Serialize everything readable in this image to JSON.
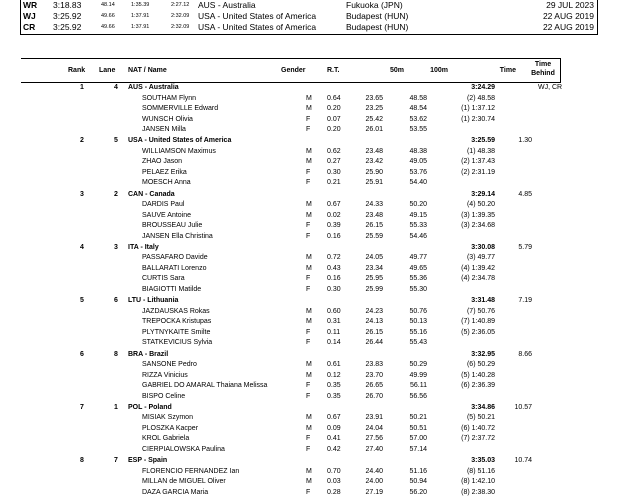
{
  "records": [
    {
      "code": "WR",
      "time": "3:18.83",
      "s1": "48.14",
      "s2": "1:35.39",
      "s3": "2:27.12",
      "holder": "AUS - Australia",
      "venue": "Fukuoka (JPN)",
      "date": "29 JUL 2023"
    },
    {
      "code": "WJ",
      "time": "3:25.92",
      "s1": "49.66",
      "s2": "1:37.91",
      "s3": "2:32.09",
      "holder": "USA - United States of America",
      "venue": "Budapest (HUN)",
      "date": "22 AUG 2019"
    },
    {
      "code": "CR",
      "time": "3:25.92",
      "s1": "49.66",
      "s2": "1:37.91",
      "s3": "2:32.09",
      "holder": "USA - United States of America",
      "venue": "Budapest (HUN)",
      "date": "22 AUG 2019"
    }
  ],
  "header": {
    "rank": "Rank",
    "lane": "Lane",
    "name": "NAT / Name",
    "gender": "Gender",
    "rt": "R.T.",
    "m50": "50m",
    "m100": "100m",
    "time": "Time",
    "behind1": "Time",
    "behind2": "Behind"
  },
  "teams": [
    {
      "rank": "1",
      "lane": "4",
      "name": "AUS - Australia",
      "time": "3:24.29",
      "behind": "",
      "note": "WJ, CR",
      "members": [
        {
          "name": "SOUTHAM Flynn",
          "g": "M",
          "rt": "0.64",
          "m50": "23.65",
          "m100": "48.58",
          "split": "(2) 48.58"
        },
        {
          "name": "SOMMERVILLE Edward",
          "g": "M",
          "rt": "0.20",
          "m50": "23.25",
          "m100": "48.54",
          "split": "(1) 1:37.12"
        },
        {
          "name": "WUNSCH Olivia",
          "g": "F",
          "rt": "0.07",
          "m50": "25.42",
          "m100": "53.62",
          "split": "(1) 2:30.74"
        },
        {
          "name": "JANSEN Milla",
          "g": "F",
          "rt": "0.20",
          "m50": "26.01",
          "m100": "53.55",
          "split": ""
        }
      ]
    },
    {
      "rank": "2",
      "lane": "5",
      "name": "USA - United States of America",
      "time": "3:25.59",
      "behind": "1.30",
      "note": "",
      "members": [
        {
          "name": "WILLIAMSON Maximus",
          "g": "M",
          "rt": "0.62",
          "m50": "23.48",
          "m100": "48.38",
          "split": "(1) 48.38"
        },
        {
          "name": "ZHAO Jason",
          "g": "M",
          "rt": "0.27",
          "m50": "23.42",
          "m100": "49.05",
          "split": "(2) 1:37.43"
        },
        {
          "name": "PELAEZ Erika",
          "g": "F",
          "rt": "0.30",
          "m50": "25.90",
          "m100": "53.76",
          "split": "(2) 2:31.19"
        },
        {
          "name": "MOESCH Anna",
          "g": "F",
          "rt": "0.21",
          "m50": "25.91",
          "m100": "54.40",
          "split": ""
        }
      ]
    },
    {
      "rank": "3",
      "lane": "2",
      "name": "CAN - Canada",
      "time": "3:29.14",
      "behind": "4.85",
      "note": "",
      "members": [
        {
          "name": "DARDIS Paul",
          "g": "M",
          "rt": "0.67",
          "m50": "24.33",
          "m100": "50.20",
          "split": "(4) 50.20"
        },
        {
          "name": "SAUVE Antoine",
          "g": "M",
          "rt": "0.02",
          "m50": "23.48",
          "m100": "49.15",
          "split": "(3) 1:39.35"
        },
        {
          "name": "BROUSSEAU Julie",
          "g": "F",
          "rt": "0.39",
          "m50": "26.15",
          "m100": "55.33",
          "split": "(3) 2:34.68"
        },
        {
          "name": "JANSEN Ella Christina",
          "g": "F",
          "rt": "0.16",
          "m50": "25.59",
          "m100": "54.46",
          "split": ""
        }
      ]
    },
    {
      "rank": "4",
      "lane": "3",
      "name": "ITA - Italy",
      "time": "3:30.08",
      "behind": "5.79",
      "note": "",
      "members": [
        {
          "name": "PASSAFARO Davide",
          "g": "M",
          "rt": "0.72",
          "m50": "24.05",
          "m100": "49.77",
          "split": "(3) 49.77"
        },
        {
          "name": "BALLARATI Lorenzo",
          "g": "M",
          "rt": "0.43",
          "m50": "23.34",
          "m100": "49.65",
          "split": "(4) 1:39.42"
        },
        {
          "name": "CURTIS Sara",
          "g": "F",
          "rt": "0.16",
          "m50": "25.95",
          "m100": "55.36",
          "split": "(4) 2:34.78"
        },
        {
          "name": "BIAGIOTTI Matilde",
          "g": "F",
          "rt": "0.30",
          "m50": "25.99",
          "m100": "55.30",
          "split": ""
        }
      ]
    },
    {
      "rank": "5",
      "lane": "6",
      "name": "LTU - Lithuania",
      "time": "3:31.48",
      "behind": "7.19",
      "note": "",
      "members": [
        {
          "name": "JAZDAUSKAS Rokas",
          "g": "M",
          "rt": "0.60",
          "m50": "24.23",
          "m100": "50.76",
          "split": "(7) 50.76"
        },
        {
          "name": "TREPOCKA Kristupas",
          "g": "M",
          "rt": "0.31",
          "m50": "24.13",
          "m100": "50.13",
          "split": "(7) 1:40.89"
        },
        {
          "name": "PLYTNYKAITE Smilte",
          "g": "F",
          "rt": "0.11",
          "m50": "26.15",
          "m100": "55.16",
          "split": "(5) 2:36.05"
        },
        {
          "name": "STATKEVICIUS Sylvia",
          "g": "F",
          "rt": "0.14",
          "m50": "26.44",
          "m100": "55.43",
          "split": ""
        }
      ]
    },
    {
      "rank": "6",
      "lane": "8",
      "name": "BRA - Brazil",
      "time": "3:32.95",
      "behind": "8.66",
      "note": "",
      "members": [
        {
          "name": "SANSONE Pedro",
          "g": "M",
          "rt": "0.61",
          "m50": "23.83",
          "m100": "50.29",
          "split": "(6) 50.29"
        },
        {
          "name": "RIZZA Vinicius",
          "g": "M",
          "rt": "0.12",
          "m50": "23.70",
          "m100": "49.99",
          "split": "(5) 1:40.28"
        },
        {
          "name": "GABRIEL DO AMARAL Thaiana Melissa",
          "g": "F",
          "rt": "0.35",
          "m50": "26.65",
          "m100": "56.11",
          "split": "(6) 2:36.39"
        },
        {
          "name": "BISPO Celine",
          "g": "F",
          "rt": "0.35",
          "m50": "26.70",
          "m100": "56.56",
          "split": ""
        }
      ]
    },
    {
      "rank": "7",
      "lane": "1",
      "name": "POL - Poland",
      "time": "3:34.86",
      "behind": "10.57",
      "note": "",
      "members": [
        {
          "name": "MISIAK Szymon",
          "g": "M",
          "rt": "0.67",
          "m50": "23.91",
          "m100": "50.21",
          "split": "(5) 50.21"
        },
        {
          "name": "PLOSZKA Kacper",
          "g": "M",
          "rt": "0.09",
          "m50": "24.04",
          "m100": "50.51",
          "split": "(6) 1:40.72"
        },
        {
          "name": "KROL Gabriela",
          "g": "F",
          "rt": "0.41",
          "m50": "27.56",
          "m100": "57.00",
          "split": "(7) 2:37.72"
        },
        {
          "name": "CIERPIALOWSKA Paulina",
          "g": "F",
          "rt": "0.42",
          "m50": "27.40",
          "m100": "57.14",
          "split": ""
        }
      ]
    },
    {
      "rank": "8",
      "lane": "7",
      "name": "ESP - Spain",
      "time": "3:35.03",
      "behind": "10.74",
      "note": "",
      "members": [
        {
          "name": "FLORENCIO FERNANDEZ Ian",
          "g": "M",
          "rt": "0.70",
          "m50": "24.40",
          "m100": "51.16",
          "split": "(8) 51.16"
        },
        {
          "name": "MILLAN de MIGUEL Oliver",
          "g": "M",
          "rt": "0.03",
          "m50": "24.00",
          "m100": "50.94",
          "split": "(8) 1:42.10"
        },
        {
          "name": "DAZA GARCIA Maria",
          "g": "F",
          "rt": "0.28",
          "m50": "27.19",
          "m100": "56.20",
          "split": "(8) 2:38.30"
        }
      ]
    }
  ]
}
